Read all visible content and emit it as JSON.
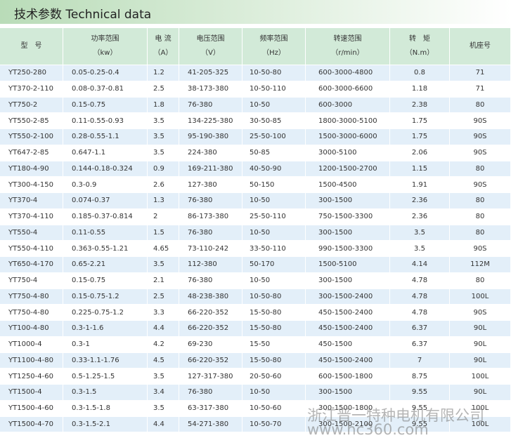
{
  "header": {
    "title": "技术参数 Technical data"
  },
  "table": {
    "columns": [
      {
        "name": "型　号"
      },
      {
        "name": "功率范围",
        "unit": "（kw）"
      },
      {
        "name": "电 流",
        "unit": "（A）"
      },
      {
        "name": "电压范围",
        "unit": "（V）"
      },
      {
        "name": "频率范围",
        "unit": "（Hz）"
      },
      {
        "name": "转速范围",
        "unit": "（r/min）"
      },
      {
        "name": "转　矩",
        "unit": "（N.m）"
      },
      {
        "name": "机座号"
      }
    ],
    "rows": [
      [
        "YT250-280",
        "0.05-0.25-0.4",
        "1.2",
        "41-205-325",
        "10-50-80",
        "600-3000-4800",
        "0.8",
        "71"
      ],
      [
        "YT370-2-110",
        "0.08-0.37-0.81",
        "2.5",
        "38-173-380",
        "10-50-110",
        "600-3000-6600",
        "1.18",
        "71"
      ],
      [
        "YT750-2",
        "0.15-0.75",
        "1.8",
        "76-380",
        "10-50",
        "600-3000",
        "2.38",
        "80"
      ],
      [
        "YT550-2-85",
        "0.11-0.55-0.93",
        "3.5",
        "134-225-380",
        "30-50-85",
        "1800-3000-5100",
        "1.75",
        "90S"
      ],
      [
        "YT550-2-100",
        "0.28-0.55-1.1",
        "3.5",
        "95-190-380",
        "25-50-100",
        "1500-3000-6000",
        "1.75",
        "90S"
      ],
      [
        "YT647-2-85",
        "0.647-1.1",
        "3.5",
        "224-380",
        "50-85",
        "3000-5100",
        "2.06",
        "90S"
      ],
      [
        "YT180-4-90",
        "0.144-0.18-0.324",
        "0.9",
        "169-211-380",
        "40-50-90",
        "1200-1500-2700",
        "1.15",
        "80"
      ],
      [
        "YT300-4-150",
        "0.3-0.9",
        "2.6",
        "127-380",
        "50-150",
        "1500-4500",
        "1.91",
        "90S"
      ],
      [
        "YT370-4",
        "0.074-0.37",
        "1.3",
        "76-380",
        "10-50",
        "300-1500",
        "2.36",
        "80"
      ],
      [
        "YT370-4-110",
        "0.185-0.37-0.814",
        "2",
        "86-173-380",
        "25-50-110",
        "750-1500-3300",
        "2.36",
        "80"
      ],
      [
        "YT550-4",
        "0.11-0.55",
        "1.5",
        "76-380",
        "10-50",
        "300-1500",
        "3.5",
        "80"
      ],
      [
        "YT550-4-110",
        "0.363-0.55-1.21",
        "4.65",
        "73-110-242",
        "33-50-110",
        "990-1500-3300",
        "3.5",
        "90S"
      ],
      [
        "YT650-4-170",
        "0.65-2.21",
        "3.5",
        "112-380",
        "50-170",
        "1500-5100",
        "4.14",
        "112M"
      ],
      [
        "YT750-4",
        "0.15-0.75",
        "2.1",
        "76-380",
        "10-50",
        "300-1500",
        "4.78",
        "80"
      ],
      [
        "YT750-4-80",
        "0.15-0.75-1.2",
        "2.5",
        "48-238-380",
        "10-50-80",
        "300-1500-2400",
        "4.78",
        "100L"
      ],
      [
        "YT750-4-80",
        "0.225-0.75-1.2",
        "3.3",
        "66-220-352",
        "15-50-80",
        "450-1500-2400",
        "4.78",
        "90S"
      ],
      [
        "YT100-4-80",
        "0.3-1-1.6",
        "4.4",
        "66-220-352",
        "15-50-80",
        "450-1500-2400",
        "6.37",
        "90L"
      ],
      [
        "YT1000-4",
        "0.3-1",
        "4.2",
        "69-230",
        "15-50",
        "450-1500",
        "6.37",
        "90L"
      ],
      [
        "YT1100-4-80",
        "0.33-1.1-1.76",
        "4.5",
        "66-220-352",
        "15-50-80",
        "450-1500-2400",
        "7",
        "90L"
      ],
      [
        "YT1250-4-60",
        "0.5-1.25-1.5",
        "3.5",
        "127-317-380",
        "20-50-60",
        "600-1500-1800",
        "8.75",
        "100L"
      ],
      [
        "YT1500-4",
        "0.3-1.5",
        "3.4",
        "76-380",
        "10-50",
        "300-1500",
        "9.55",
        "90L"
      ],
      [
        "YT1500-4-60",
        "0.3-1.5-1.8",
        "3.5",
        "63-317-380",
        "10-50-60",
        "300-1500-1800",
        "9.55",
        "100L"
      ],
      [
        "YT1500-4-70",
        "0.3-1.5-2.1",
        "4.4",
        "54-271-380",
        "10-50-70",
        "300-1500-2100",
        "9.55",
        "100L"
      ]
    ]
  },
  "watermark": {
    "company": "浙江晋一特种电机有限公司",
    "site": "www.hc360.com"
  }
}
